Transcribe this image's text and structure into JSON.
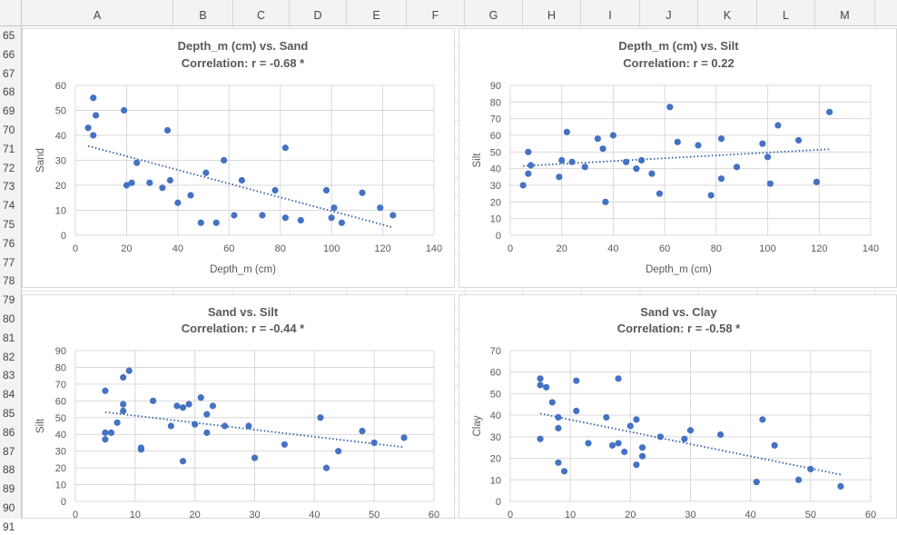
{
  "sheet": {
    "columns": [
      "A",
      "B",
      "C",
      "D",
      "E",
      "F",
      "G",
      "H",
      "I",
      "J",
      "K",
      "L",
      "M"
    ],
    "rows": [
      "65",
      "66",
      "67",
      "68",
      "69",
      "70",
      "71",
      "72",
      "73",
      "74",
      "75",
      "76",
      "77",
      "78",
      "79",
      "80",
      "81",
      "82",
      "83",
      "84",
      "85",
      "86",
      "87",
      "88",
      "89",
      "90",
      "91"
    ]
  },
  "colors": {
    "point": "#4472c4",
    "trendline": "#2e5fa8",
    "gridline": "#d9d9d9",
    "header_bg": "#f3f3f3"
  },
  "chart_data": [
    {
      "type": "scatter",
      "title": "Depth_m (cm) vs. Sand",
      "subtitle": "Correlation: r = -0.68 *",
      "xlabel": "Depth_m (cm)",
      "ylabel": "Sand",
      "xlim": [
        0,
        140
      ],
      "ylim": [
        0,
        60
      ],
      "xticks": [
        "0",
        "20",
        "40",
        "60",
        "80",
        "100",
        "120",
        "140"
      ],
      "yticks": [
        "0",
        "10",
        "20",
        "30",
        "40",
        "50",
        "60"
      ],
      "grid": true,
      "trendline": "linear",
      "points": [
        [
          5,
          43
        ],
        [
          7,
          55
        ],
        [
          7,
          40
        ],
        [
          8,
          48
        ],
        [
          19,
          50
        ],
        [
          20,
          20
        ],
        [
          22,
          21
        ],
        [
          24,
          29
        ],
        [
          29,
          21
        ],
        [
          34,
          19
        ],
        [
          36,
          42
        ],
        [
          37,
          22
        ],
        [
          40,
          13
        ],
        [
          45,
          16
        ],
        [
          49,
          5
        ],
        [
          51,
          25
        ],
        [
          55,
          5
        ],
        [
          58,
          30
        ],
        [
          62,
          8
        ],
        [
          65,
          22
        ],
        [
          73,
          8
        ],
        [
          78,
          18
        ],
        [
          82,
          35
        ],
        [
          82,
          7
        ],
        [
          88,
          6
        ],
        [
          98,
          18
        ],
        [
          100,
          7
        ],
        [
          101,
          11
        ],
        [
          104,
          5
        ],
        [
          112,
          17
        ],
        [
          119,
          11
        ],
        [
          124,
          8
        ]
      ]
    },
    {
      "type": "scatter",
      "title": "Depth_m (cm) vs. Silt",
      "subtitle": "Correlation: r = 0.22",
      "xlabel": "Depth_m (cm)",
      "ylabel": "Silt",
      "xlim": [
        0,
        140
      ],
      "ylim": [
        0,
        90
      ],
      "xticks": [
        "0",
        "20",
        "40",
        "60",
        "80",
        "100",
        "120",
        "140"
      ],
      "yticks": [
        "0",
        "10",
        "20",
        "30",
        "40",
        "50",
        "60",
        "70",
        "80",
        "90"
      ],
      "grid": true,
      "trendline": "linear",
      "points": [
        [
          5,
          30
        ],
        [
          7,
          37
        ],
        [
          7,
          50
        ],
        [
          8,
          42
        ],
        [
          19,
          35
        ],
        [
          20,
          45
        ],
        [
          22,
          62
        ],
        [
          24,
          44
        ],
        [
          29,
          41
        ],
        [
          34,
          58
        ],
        [
          36,
          52
        ],
        [
          37,
          20
        ],
        [
          40,
          60
        ],
        [
          45,
          44
        ],
        [
          49,
          40
        ],
        [
          51,
          45
        ],
        [
          55,
          37
        ],
        [
          58,
          25
        ],
        [
          62,
          77
        ],
        [
          65,
          56
        ],
        [
          73,
          54
        ],
        [
          78,
          24
        ],
        [
          82,
          34
        ],
        [
          82,
          58
        ],
        [
          88,
          41
        ],
        [
          98,
          55
        ],
        [
          100,
          47
        ],
        [
          101,
          31
        ],
        [
          104,
          66
        ],
        [
          112,
          57
        ],
        [
          119,
          32
        ],
        [
          124,
          74
        ]
      ]
    },
    {
      "type": "scatter",
      "title": "Sand vs. Silt",
      "subtitle": "Correlation: r = -0.44 *",
      "xlabel": "",
      "ylabel": "Silt",
      "xlim": [
        0,
        60
      ],
      "ylim": [
        0,
        90
      ],
      "xticks": [
        "0",
        "10",
        "20",
        "30",
        "40",
        "50",
        "60"
      ],
      "yticks": [
        "0",
        "10",
        "20",
        "30",
        "40",
        "50",
        "60",
        "70",
        "80",
        "90"
      ],
      "grid": true,
      "trendline": "linear",
      "points": [
        [
          5,
          66
        ],
        [
          5,
          41
        ],
        [
          5,
          37
        ],
        [
          6,
          41
        ],
        [
          7,
          47
        ],
        [
          8,
          74
        ],
        [
          8,
          58
        ],
        [
          8,
          54
        ],
        [
          9,
          78
        ],
        [
          11,
          32
        ],
        [
          11,
          31
        ],
        [
          13,
          60
        ],
        [
          16,
          45
        ],
        [
          17,
          57
        ],
        [
          18,
          56
        ],
        [
          18,
          24
        ],
        [
          19,
          58
        ],
        [
          20,
          46
        ],
        [
          21,
          62
        ],
        [
          22,
          41
        ],
        [
          22,
          52
        ],
        [
          23,
          57
        ],
        [
          25,
          45
        ],
        [
          29,
          45
        ],
        [
          30,
          26
        ],
        [
          35,
          34
        ],
        [
          41,
          50
        ],
        [
          42,
          20
        ],
        [
          44,
          30
        ],
        [
          48,
          42
        ],
        [
          50,
          35
        ],
        [
          55,
          38
        ]
      ]
    },
    {
      "type": "scatter",
      "title": "Sand vs. Clay",
      "subtitle": "Correlation: r = -0.58 *",
      "xlabel": "",
      "ylabel": "Clay",
      "xlim": [
        0,
        60
      ],
      "ylim": [
        0,
        70
      ],
      "xticks": [
        "0",
        "10",
        "20",
        "30",
        "40",
        "50",
        "60"
      ],
      "yticks": [
        "0",
        "10",
        "20",
        "30",
        "40",
        "50",
        "60",
        "70"
      ],
      "grid": true,
      "trendline": "linear",
      "points": [
        [
          5,
          57
        ],
        [
          5,
          54
        ],
        [
          5,
          29
        ],
        [
          6,
          53
        ],
        [
          7,
          46
        ],
        [
          8,
          34
        ],
        [
          8,
          39
        ],
        [
          8,
          18
        ],
        [
          9,
          14
        ],
        [
          11,
          56
        ],
        [
          11,
          42
        ],
        [
          13,
          27
        ],
        [
          16,
          39
        ],
        [
          17,
          26
        ],
        [
          18,
          27
        ],
        [
          18,
          57
        ],
        [
          19,
          23
        ],
        [
          20,
          35
        ],
        [
          21,
          17
        ],
        [
          21,
          38
        ],
        [
          22,
          25
        ],
        [
          22,
          21
        ],
        [
          25,
          30
        ],
        [
          29,
          29
        ],
        [
          30,
          33
        ],
        [
          35,
          31
        ],
        [
          41,
          9
        ],
        [
          42,
          38
        ],
        [
          44,
          26
        ],
        [
          48,
          10
        ],
        [
          50,
          15
        ],
        [
          55,
          7
        ]
      ]
    }
  ]
}
